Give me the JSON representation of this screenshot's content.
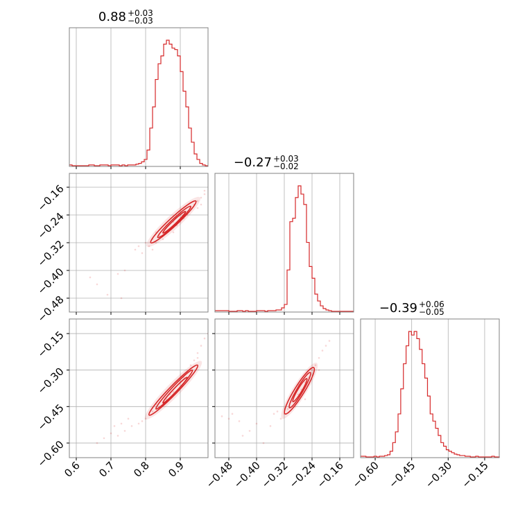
{
  "chart_data": {
    "type": "corner",
    "parameters": [
      {
        "title_value": "0.88",
        "title_plus": "+0.03",
        "title_minus": "−0.03",
        "range": [
          0.58,
          0.98
        ],
        "ticks": [
          {
            "v": 0.6,
            "label": "0.6"
          },
          {
            "v": 0.7,
            "label": "0.7"
          },
          {
            "v": 0.8,
            "label": "0.8"
          },
          {
            "v": 0.9,
            "label": "0.9"
          }
        ],
        "quantiles": [
          0.85,
          0.88,
          0.91
        ]
      },
      {
        "title_value": "−0.27",
        "title_plus": "+0.03",
        "title_minus": "−0.02",
        "range": [
          -0.52,
          -0.12
        ],
        "ticks": [
          {
            "v": -0.48,
            "label": "−0.48"
          },
          {
            "v": -0.4,
            "label": "−0.40"
          },
          {
            "v": -0.32,
            "label": "−0.32"
          },
          {
            "v": -0.24,
            "label": "−0.24"
          },
          {
            "v": -0.16,
            "label": "−0.16"
          }
        ],
        "quantiles": [
          -0.29,
          -0.27,
          -0.24
        ]
      },
      {
        "title_value": "−0.39",
        "title_plus": "+0.06",
        "title_minus": "−0.05",
        "range": [
          -0.66,
          -0.09
        ],
        "ticks": [
          {
            "v": -0.6,
            "label": "−0.60"
          },
          {
            "v": -0.45,
            "label": "−0.45"
          },
          {
            "v": -0.3,
            "label": "−0.30"
          },
          {
            "v": -0.15,
            "label": "−0.15"
          }
        ],
        "quantiles": [
          -0.44,
          -0.39,
          -0.33
        ]
      }
    ],
    "histograms": [
      {
        "bins": [
          0.58,
          0.588,
          0.596,
          0.604,
          0.612,
          0.62,
          0.628,
          0.636,
          0.644,
          0.652,
          0.66,
          0.668,
          0.676,
          0.684,
          0.692,
          0.7,
          0.708,
          0.716,
          0.724,
          0.732,
          0.74,
          0.748,
          0.756,
          0.764,
          0.772,
          0.78,
          0.788,
          0.796,
          0.804,
          0.812,
          0.82,
          0.828,
          0.836,
          0.844,
          0.852,
          0.86,
          0.868,
          0.876,
          0.884,
          0.892,
          0.9,
          0.908,
          0.916,
          0.924,
          0.932,
          0.94,
          0.948,
          0.956,
          0.964,
          0.972,
          0.98
        ],
        "counts": [
          1,
          0,
          0,
          0,
          0,
          0,
          0,
          1,
          1,
          0,
          0,
          1,
          1,
          1,
          0,
          1,
          1,
          1,
          0,
          1,
          0,
          1,
          1,
          1,
          2,
          3,
          5,
          8,
          20,
          48,
          75,
          110,
          130,
          140,
          155,
          160,
          155,
          150,
          148,
          140,
          120,
          95,
          75,
          48,
          30,
          15,
          8,
          3,
          1,
          0
        ]
      },
      {
        "bins": [
          -0.52,
          -0.512,
          -0.504,
          -0.496,
          -0.488,
          -0.48,
          -0.472,
          -0.464,
          -0.456,
          -0.448,
          -0.44,
          -0.432,
          -0.424,
          -0.416,
          -0.408,
          -0.4,
          -0.392,
          -0.384,
          -0.376,
          -0.368,
          -0.36,
          -0.352,
          -0.344,
          -0.336,
          -0.328,
          -0.32,
          -0.312,
          -0.304,
          -0.296,
          -0.288,
          -0.28,
          -0.272,
          -0.264,
          -0.256,
          -0.248,
          -0.24,
          -0.232,
          -0.224,
          -0.216,
          -0.208,
          -0.2,
          -0.192,
          -0.184,
          -0.176,
          -0.168,
          -0.16,
          -0.152,
          -0.144,
          -0.136,
          -0.128,
          -0.12
        ],
        "counts": [
          1,
          1,
          1,
          1,
          1,
          0,
          0,
          0,
          1,
          1,
          0,
          1,
          0,
          0,
          0,
          1,
          1,
          1,
          0,
          1,
          1,
          1,
          2,
          2,
          5,
          10,
          60,
          130,
          135,
          165,
          182,
          170,
          155,
          100,
          65,
          48,
          25,
          15,
          8,
          4,
          2,
          1,
          0,
          0,
          0,
          0,
          0,
          0,
          0,
          0
        ]
      },
      {
        "bins": [
          -0.66,
          -0.649,
          -0.638,
          -0.627,
          -0.616,
          -0.605,
          -0.594,
          -0.583,
          -0.572,
          -0.561,
          -0.55,
          -0.539,
          -0.528,
          -0.517,
          -0.506,
          -0.495,
          -0.484,
          -0.473,
          -0.462,
          -0.451,
          -0.44,
          -0.429,
          -0.418,
          -0.407,
          -0.396,
          -0.385,
          -0.374,
          -0.363,
          -0.352,
          -0.341,
          -0.33,
          -0.319,
          -0.308,
          -0.297,
          -0.286,
          -0.275,
          -0.264,
          -0.253,
          -0.242,
          -0.231,
          -0.22,
          -0.209,
          -0.198,
          -0.187,
          -0.176,
          -0.165,
          -0.154,
          -0.143,
          -0.132,
          -0.121,
          -0.11,
          -0.099,
          -0.088
        ],
        "counts": [
          1,
          1,
          0,
          0,
          0,
          1,
          0,
          1,
          1,
          2,
          3,
          8,
          20,
          35,
          60,
          95,
          130,
          155,
          175,
          170,
          175,
          165,
          150,
          130,
          110,
          85,
          60,
          50,
          40,
          30,
          20,
          15,
          10,
          8,
          6,
          4,
          3,
          2,
          2,
          1,
          1,
          0,
          0,
          1,
          0,
          0,
          0,
          0,
          0,
          1,
          0,
          0
        ]
      }
    ],
    "pairs": [
      {
        "x": 0,
        "y": 1,
        "center": [
          0.88,
          -0.27
        ],
        "contours": [
          {
            "p1": [
              0.815,
              -0.32
            ],
            "p2": [
              0.945,
              -0.2
            ],
            "w": 0.012
          },
          {
            "p1": [
              0.835,
              -0.305
            ],
            "p2": [
              0.93,
              -0.215
            ],
            "w": 0.008
          },
          {
            "p1": [
              0.85,
              -0.292
            ],
            "p2": [
              0.915,
              -0.23
            ],
            "w": 0.005
          }
        ],
        "samples": [
          [
            0.92,
            -0.23
          ],
          [
            0.94,
            -0.21
          ],
          [
            0.95,
            -0.2
          ],
          [
            0.96,
            -0.19
          ],
          [
            0.97,
            -0.17
          ],
          [
            0.83,
            -0.32
          ],
          [
            0.82,
            -0.31
          ],
          [
            0.81,
            -0.33
          ],
          [
            0.8,
            -0.32
          ],
          [
            0.86,
            -0.29
          ],
          [
            0.87,
            -0.28
          ],
          [
            0.89,
            -0.27
          ],
          [
            0.91,
            -0.25
          ],
          [
            0.9,
            -0.26
          ],
          [
            0.93,
            -0.22
          ],
          [
            0.84,
            -0.3
          ],
          [
            0.85,
            -0.31
          ],
          [
            0.88,
            -0.29
          ],
          [
            0.92,
            -0.24
          ],
          [
            0.86,
            -0.27
          ],
          [
            0.78,
            -0.33
          ],
          [
            0.77,
            -0.34
          ],
          [
            0.72,
            -0.41
          ],
          [
            0.74,
            -0.4
          ],
          [
            0.66,
            -0.44
          ],
          [
            0.69,
            -0.47
          ],
          [
            0.73,
            -0.48
          ],
          [
            0.64,
            -0.42
          ],
          [
            0.95,
            -0.22
          ],
          [
            0.9,
            -0.24
          ],
          [
            0.88,
            -0.26
          ],
          [
            0.83,
            -0.29
          ],
          [
            0.96,
            -0.21
          ],
          [
            0.97,
            -0.18
          ],
          [
            0.82,
            -0.34
          ],
          [
            0.79,
            -0.35
          ]
        ]
      },
      {
        "x": 0,
        "y": 2,
        "center": [
          0.88,
          -0.39
        ],
        "contours": [
          {
            "p1": [
              0.81,
              -0.485
            ],
            "p2": [
              0.95,
              -0.28
            ],
            "w": 0.012
          },
          {
            "p1": [
              0.83,
              -0.46
            ],
            "p2": [
              0.935,
              -0.3
            ],
            "w": 0.008
          },
          {
            "p1": [
              0.85,
              -0.435
            ],
            "p2": [
              0.92,
              -0.33
            ],
            "w": 0.005
          }
        ],
        "samples": [
          [
            0.96,
            -0.2
          ],
          [
            0.97,
            -0.17
          ],
          [
            0.95,
            -0.23
          ],
          [
            0.94,
            -0.26
          ],
          [
            0.93,
            -0.28
          ],
          [
            0.8,
            -0.5
          ],
          [
            0.79,
            -0.51
          ],
          [
            0.78,
            -0.52
          ],
          [
            0.76,
            -0.53
          ],
          [
            0.74,
            -0.55
          ],
          [
            0.72,
            -0.57
          ],
          [
            0.7,
            -0.56
          ],
          [
            0.68,
            -0.58
          ],
          [
            0.66,
            -0.6
          ],
          [
            0.86,
            -0.42
          ],
          [
            0.88,
            -0.39
          ],
          [
            0.9,
            -0.35
          ],
          [
            0.84,
            -0.45
          ],
          [
            0.92,
            -0.31
          ],
          [
            0.82,
            -0.47
          ],
          [
            0.75,
            -0.5
          ],
          [
            0.73,
            -0.52
          ],
          [
            0.71,
            -0.53
          ],
          [
            0.83,
            -0.44
          ],
          [
            0.87,
            -0.4
          ],
          [
            0.91,
            -0.33
          ],
          [
            0.95,
            -0.25
          ],
          [
            0.98,
            -0.15
          ]
        ]
      },
      {
        "x": 1,
        "y": 2,
        "center": [
          -0.27,
          -0.39
        ],
        "contours": [
          {
            "p1": [
              -0.318,
              -0.48
            ],
            "p2": [
              -0.235,
              -0.29
            ],
            "w": 0.014
          },
          {
            "p1": [
              -0.305,
              -0.455
            ],
            "p2": [
              -0.245,
              -0.31
            ],
            "w": 0.009
          },
          {
            "p1": [
              -0.295,
              -0.43
            ],
            "p2": [
              -0.255,
              -0.335
            ],
            "w": 0.006
          }
        ],
        "samples": [
          [
            -0.22,
            -0.25
          ],
          [
            -0.21,
            -0.22
          ],
          [
            -0.2,
            -0.2
          ],
          [
            -0.19,
            -0.18
          ],
          [
            -0.24,
            -0.3
          ],
          [
            -0.32,
            -0.48
          ],
          [
            -0.33,
            -0.5
          ],
          [
            -0.34,
            -0.47
          ],
          [
            -0.4,
            -0.52
          ],
          [
            -0.45,
            -0.51
          ],
          [
            -0.48,
            -0.5
          ],
          [
            -0.5,
            -0.49
          ],
          [
            -0.44,
            -0.57
          ],
          [
            -0.38,
            -0.6
          ],
          [
            -0.3,
            -0.43
          ],
          [
            -0.28,
            -0.4
          ],
          [
            -0.26,
            -0.35
          ],
          [
            -0.29,
            -0.45
          ],
          [
            -0.31,
            -0.46
          ],
          [
            -0.27,
            -0.38
          ],
          [
            -0.25,
            -0.33
          ],
          [
            -0.23,
            -0.28
          ],
          [
            -0.35,
            -0.48
          ],
          [
            -0.36,
            -0.53
          ],
          [
            -0.42,
            -0.55
          ],
          [
            -0.47,
            -0.48
          ],
          [
            -0.26,
            -0.42
          ],
          [
            -0.28,
            -0.36
          ],
          [
            -0.22,
            -0.3
          ]
        ]
      }
    ],
    "colors": {
      "line": "#d62728",
      "grid": "#b0b0b0",
      "frame": "#808080",
      "text": "#000000"
    }
  }
}
